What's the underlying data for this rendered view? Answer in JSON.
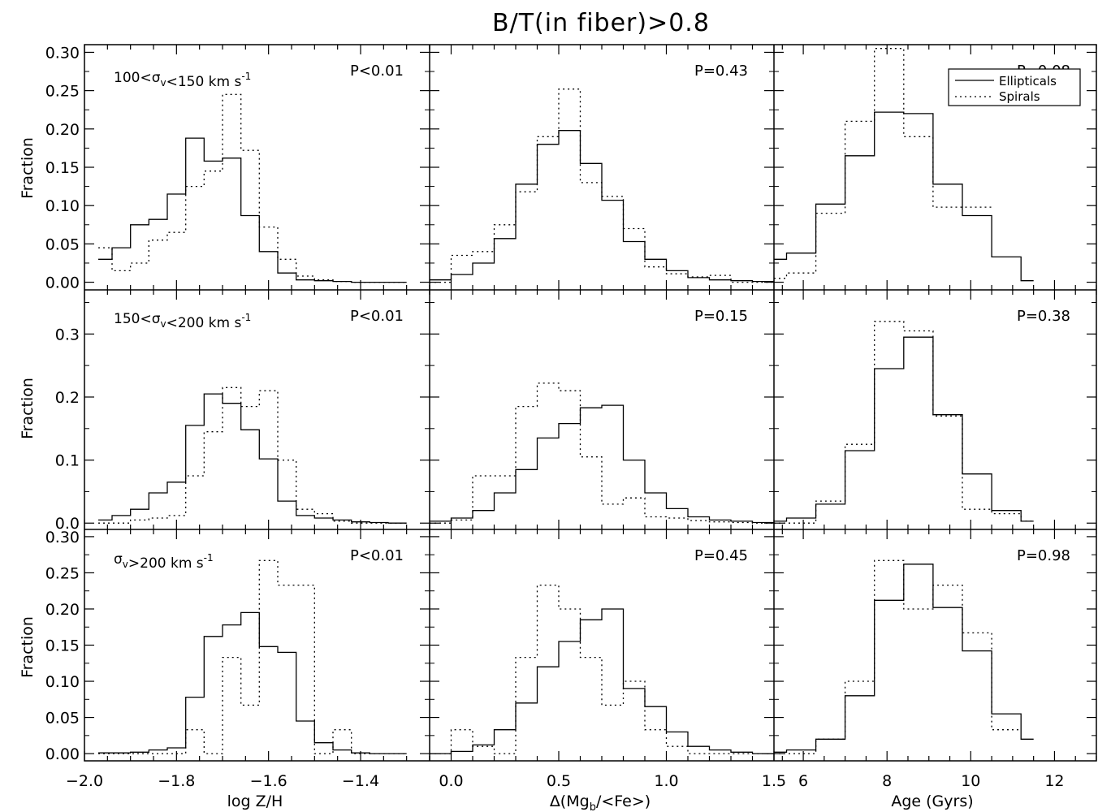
{
  "figure": {
    "title": "B/T(in fiber)>0.8",
    "ylabel": "Fraction",
    "xlabels": [
      "log Z/H",
      "Δ(Mg_b/<Fe>)",
      "Age (Gyrs)"
    ],
    "legend": {
      "ellipticals": "Ellipticals",
      "spirals": "Spirals"
    },
    "row_labels": [
      "100<σ_v<150 km s^-1",
      "150<σ_v<200 km s^-1",
      "σ_v>200 km s^-1"
    ],
    "colors": {
      "line": "#000000",
      "background": "#ffffff"
    }
  },
  "chart_data": [
    {
      "type": "line",
      "row": 0,
      "col": 0,
      "step": true,
      "annotation": "P<0.01",
      "xlim": [
        -2.0,
        -1.25
      ],
      "ylim": [
        -0.01,
        0.31
      ],
      "ytick_labels": [
        "0.00",
        "0.05",
        "0.10",
        "0.15",
        "0.20",
        "0.25",
        "0.30"
      ],
      "series": [
        {
          "name": "Ellipticals",
          "style": "solid",
          "edges": [
            -1.97,
            -1.94,
            -1.9,
            -1.86,
            -1.82,
            -1.78,
            -1.74,
            -1.7,
            -1.66,
            -1.62,
            -1.58,
            -1.54,
            -1.5,
            -1.46,
            -1.42,
            -1.38,
            -1.34,
            -1.3
          ],
          "values": [
            0.03,
            0.045,
            0.075,
            0.082,
            0.115,
            0.188,
            0.158,
            0.162,
            0.087,
            0.04,
            0.012,
            0.003,
            0.002,
            0.001,
            0,
            0,
            0
          ]
        },
        {
          "name": "Spirals",
          "style": "dotted",
          "edges": [
            -1.97,
            -1.94,
            -1.9,
            -1.86,
            -1.82,
            -1.78,
            -1.74,
            -1.7,
            -1.66,
            -1.62,
            -1.58,
            -1.54,
            -1.5,
            -1.46,
            -1.42,
            -1.38,
            -1.34,
            -1.3
          ],
          "values": [
            0.045,
            0.015,
            0.025,
            0.055,
            0.065,
            0.125,
            0.145,
            0.245,
            0.172,
            0.072,
            0.03,
            0.008,
            0.003,
            0.001,
            0,
            0,
            0
          ]
        }
      ]
    },
    {
      "type": "line",
      "row": 0,
      "col": 1,
      "step": true,
      "annotation": "P=0.43",
      "xlim": [
        -0.1,
        1.5
      ],
      "ylim": [
        -0.01,
        0.31
      ],
      "series": [
        {
          "name": "Ellipticals",
          "style": "solid",
          "edges": [
            -0.1,
            0.0,
            0.1,
            0.2,
            0.3,
            0.4,
            0.5,
            0.6,
            0.7,
            0.8,
            0.9,
            1.0,
            1.1,
            1.2,
            1.3,
            1.4,
            1.5
          ],
          "values": [
            0.003,
            0.01,
            0.025,
            0.057,
            0.128,
            0.18,
            0.198,
            0.155,
            0.107,
            0.053,
            0.03,
            0.015,
            0.006,
            0.003,
            0.002,
            0.001
          ]
        },
        {
          "name": "Spirals",
          "style": "dotted",
          "edges": [
            -0.1,
            0.0,
            0.1,
            0.2,
            0.3,
            0.4,
            0.5,
            0.6,
            0.7,
            0.8,
            0.9,
            1.0,
            1.1,
            1.2,
            1.3,
            1.4,
            1.5
          ],
          "values": [
            0,
            0.035,
            0.04,
            0.075,
            0.118,
            0.19,
            0.252,
            0.13,
            0.112,
            0.07,
            0.02,
            0.011,
            0.007,
            0.009,
            0,
            0
          ]
        }
      ]
    },
    {
      "type": "line",
      "row": 0,
      "col": 2,
      "step": true,
      "annotation": "P=0.08",
      "xlim": [
        5.3,
        13.0
      ],
      "ylim": [
        -0.01,
        0.31
      ],
      "series": [
        {
          "name": "Ellipticals",
          "style": "solid",
          "edges": [
            5.3,
            5.6,
            6.3,
            7.0,
            7.7,
            8.4,
            9.1,
            9.8,
            10.5,
            11.2,
            11.5
          ],
          "values": [
            0.03,
            0.038,
            0.102,
            0.165,
            0.222,
            0.22,
            0.128,
            0.087,
            0.033,
            0.002
          ]
        },
        {
          "name": "Spirals",
          "style": "dotted",
          "edges": [
            5.3,
            5.6,
            6.3,
            7.0,
            7.7,
            8.4,
            9.1,
            9.8,
            10.5
          ],
          "values": [
            0.005,
            0.012,
            0.09,
            0.21,
            0.305,
            0.19,
            0.098,
            0.098
          ]
        }
      ]
    },
    {
      "type": "line",
      "row": 1,
      "col": 0,
      "step": true,
      "annotation": "P<0.01",
      "xlim": [
        -2.0,
        -1.25
      ],
      "ylim": [
        -0.01,
        0.37
      ],
      "ytick_labels": [
        "0.0",
        "0.1",
        "0.2",
        "0.3"
      ],
      "series": [
        {
          "name": "Ellipticals",
          "style": "solid",
          "edges": [
            -1.97,
            -1.94,
            -1.9,
            -1.86,
            -1.82,
            -1.78,
            -1.74,
            -1.7,
            -1.66,
            -1.62,
            -1.58,
            -1.54,
            -1.5,
            -1.46,
            -1.42,
            -1.38,
            -1.34,
            -1.3
          ],
          "values": [
            0.005,
            0.012,
            0.022,
            0.048,
            0.065,
            0.155,
            0.205,
            0.19,
            0.148,
            0.102,
            0.035,
            0.012,
            0.008,
            0.005,
            0.002,
            0.001,
            0
          ]
        },
        {
          "name": "Spirals",
          "style": "dotted",
          "edges": [
            -1.97,
            -1.94,
            -1.9,
            -1.86,
            -1.82,
            -1.78,
            -1.74,
            -1.7,
            -1.66,
            -1.62,
            -1.58,
            -1.54,
            -1.5,
            -1.46,
            -1.42,
            -1.38,
            -1.34,
            -1.3
          ],
          "values": [
            0,
            0,
            0.005,
            0.008,
            0.012,
            0.075,
            0.145,
            0.215,
            0.185,
            0.21,
            0.1,
            0.022,
            0.015,
            0.003,
            0,
            0,
            0
          ]
        }
      ]
    },
    {
      "type": "line",
      "row": 1,
      "col": 1,
      "step": true,
      "annotation": "P=0.15",
      "xlim": [
        -0.1,
        1.5
      ],
      "ylim": [
        -0.01,
        0.37
      ],
      "series": [
        {
          "name": "Ellipticals",
          "style": "solid",
          "edges": [
            -0.1,
            0.0,
            0.1,
            0.2,
            0.3,
            0.4,
            0.5,
            0.6,
            0.7,
            0.8,
            0.9,
            1.0,
            1.1,
            1.2,
            1.3,
            1.4,
            1.5
          ],
          "values": [
            0.003,
            0.008,
            0.02,
            0.048,
            0.085,
            0.135,
            0.158,
            0.183,
            0.187,
            0.1,
            0.048,
            0.023,
            0.01,
            0.005,
            0.003,
            0.001
          ]
        },
        {
          "name": "Spirals",
          "style": "dotted",
          "edges": [
            -0.1,
            0.0,
            0.1,
            0.2,
            0.3,
            0.4,
            0.5,
            0.6,
            0.7,
            0.8,
            0.9,
            1.0,
            1.1,
            1.2,
            1.3,
            1.4,
            1.5
          ],
          "values": [
            0,
            0.005,
            0.075,
            0.075,
            0.185,
            0.222,
            0.21,
            0.105,
            0.03,
            0.04,
            0.01,
            0.008,
            0.004,
            0.002,
            0.001,
            0
          ]
        }
      ]
    },
    {
      "type": "line",
      "row": 1,
      "col": 2,
      "step": true,
      "annotation": "P=0.38",
      "xlim": [
        5.3,
        13.0
      ],
      "ylim": [
        -0.01,
        0.37
      ],
      "series": [
        {
          "name": "Ellipticals",
          "style": "solid",
          "edges": [
            5.3,
            5.6,
            6.3,
            7.0,
            7.7,
            8.4,
            9.1,
            9.8,
            10.5,
            11.2,
            11.5
          ],
          "values": [
            0.003,
            0.008,
            0.03,
            0.115,
            0.245,
            0.295,
            0.172,
            0.078,
            0.02,
            0.003
          ]
        },
        {
          "name": "Spirals",
          "style": "dotted",
          "edges": [
            5.3,
            5.6,
            6.3,
            7.0,
            7.7,
            8.4,
            9.1,
            9.8,
            10.5,
            11.2,
            11.5
          ],
          "values": [
            0,
            0,
            0.035,
            0.125,
            0.32,
            0.305,
            0.17,
            0.022,
            0.015,
            0.003
          ]
        }
      ]
    },
    {
      "type": "line",
      "row": 2,
      "col": 0,
      "step": true,
      "annotation": "P<0.01",
      "xlim": [
        -2.0,
        -1.25
      ],
      "ylim": [
        -0.01,
        0.31
      ],
      "ytick_labels": [
        "0.00",
        "0.05",
        "0.10",
        "0.15",
        "0.20",
        "0.25",
        "0.30"
      ],
      "series": [
        {
          "name": "Ellipticals",
          "style": "solid",
          "edges": [
            -1.97,
            -1.94,
            -1.9,
            -1.86,
            -1.82,
            -1.78,
            -1.74,
            -1.7,
            -1.66,
            -1.62,
            -1.58,
            -1.54,
            -1.5,
            -1.46,
            -1.42,
            -1.38,
            -1.34,
            -1.3
          ],
          "values": [
            0.001,
            0.001,
            0.002,
            0.005,
            0.008,
            0.078,
            0.162,
            0.178,
            0.195,
            0.148,
            0.14,
            0.045,
            0.015,
            0.005,
            0.001,
            0,
            0
          ]
        },
        {
          "name": "Spirals",
          "style": "dotted",
          "edges": [
            -1.97,
            -1.94,
            -1.9,
            -1.86,
            -1.82,
            -1.78,
            -1.74,
            -1.7,
            -1.66,
            -1.62,
            -1.58,
            -1.54,
            -1.5,
            -1.46,
            -1.42,
            -1.38,
            -1.34,
            -1.3
          ],
          "values": [
            0,
            0,
            0,
            0,
            0,
            0.033,
            0,
            0.133,
            0.067,
            0.267,
            0.233,
            0.233,
            0,
            0.033,
            0,
            0,
            0
          ]
        }
      ]
    },
    {
      "type": "line",
      "row": 2,
      "col": 1,
      "step": true,
      "annotation": "P=0.45",
      "xlim": [
        -0.1,
        1.5
      ],
      "ylim": [
        -0.01,
        0.31
      ],
      "series": [
        {
          "name": "Ellipticals",
          "style": "solid",
          "edges": [
            -0.1,
            0.0,
            0.1,
            0.2,
            0.3,
            0.4,
            0.5,
            0.6,
            0.7,
            0.8,
            0.9,
            1.0,
            1.1,
            1.2,
            1.3,
            1.4,
            1.5
          ],
          "values": [
            0,
            0.003,
            0.012,
            0.033,
            0.07,
            0.12,
            0.155,
            0.185,
            0.2,
            0.09,
            0.065,
            0.03,
            0.01,
            0.005,
            0.002,
            0
          ]
        },
        {
          "name": "Spirals",
          "style": "dotted",
          "edges": [
            -0.1,
            0.0,
            0.1,
            0.2,
            0.3,
            0.4,
            0.5,
            0.6,
            0.7,
            0.8,
            0.9,
            1.0,
            1.1,
            1.2,
            1.3,
            1.4,
            1.5
          ],
          "values": [
            0,
            0.033,
            0.01,
            0,
            0.133,
            0.233,
            0.2,
            0.133,
            0.067,
            0.1,
            0.033,
            0.01,
            0,
            0,
            0,
            0
          ]
        }
      ]
    },
    {
      "type": "line",
      "row": 2,
      "col": 2,
      "step": true,
      "annotation": "P=0.98",
      "xlim": [
        5.3,
        13.0
      ],
      "ylim": [
        -0.01,
        0.31
      ],
      "series": [
        {
          "name": "Ellipticals",
          "style": "solid",
          "edges": [
            5.3,
            5.6,
            6.3,
            7.0,
            7.7,
            8.4,
            9.1,
            9.8,
            10.5,
            11.2,
            11.5
          ],
          "values": [
            0.002,
            0.005,
            0.02,
            0.08,
            0.212,
            0.262,
            0.202,
            0.142,
            0.055,
            0.02
          ]
        },
        {
          "name": "Spirals",
          "style": "dotted",
          "edges": [
            5.3,
            5.6,
            6.3,
            7.0,
            7.7,
            8.4,
            9.1,
            9.8,
            10.5,
            11.2
          ],
          "values": [
            0,
            0,
            0.02,
            0.1,
            0.267,
            0.2,
            0.233,
            0.167,
            0.033
          ]
        }
      ]
    }
  ],
  "axes": {
    "bottom": [
      {
        "ticks": [
          -2.0,
          -1.8,
          -1.6,
          -1.4
        ],
        "labels": [
          "−2.0",
          "−1.8",
          "−1.6",
          "−1.4"
        ]
      },
      {
        "ticks": [
          0.0,
          0.5,
          1.0,
          1.5
        ],
        "labels": [
          "0.0",
          "0.5",
          "1.0",
          "1.5"
        ]
      },
      {
        "ticks": [
          6,
          8,
          10,
          12
        ],
        "labels": [
          "6",
          "8",
          "10",
          "12"
        ]
      }
    ]
  }
}
